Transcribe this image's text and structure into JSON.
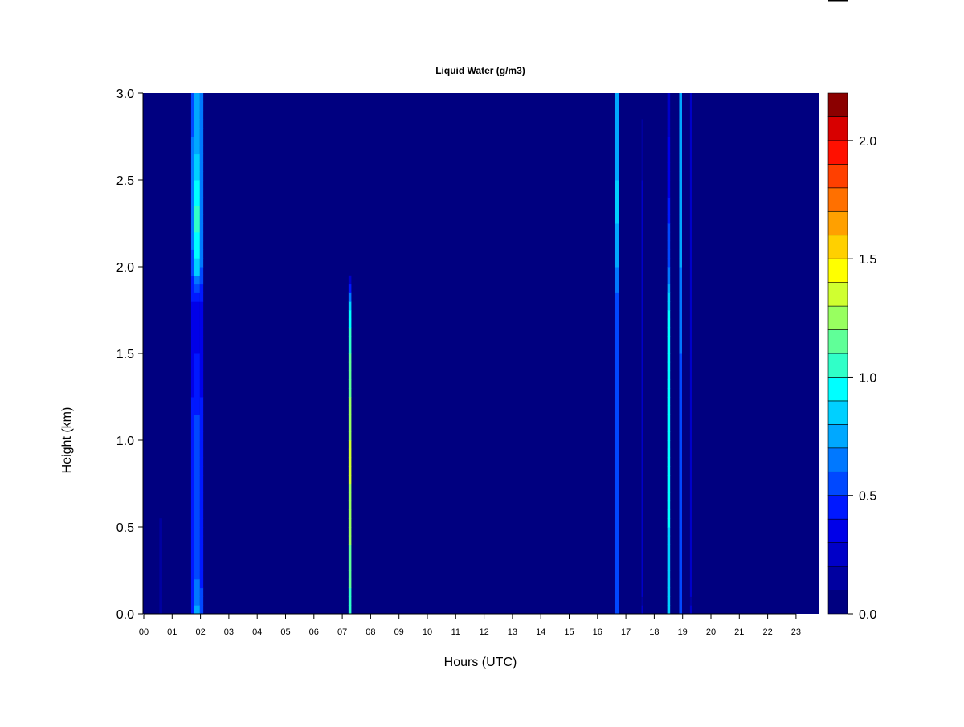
{
  "chart_data": {
    "type": "heatmap",
    "title": "Liquid Water (g/m3)",
    "xlabel": "Hours (UTC)",
    "ylabel": "Height (km)",
    "xlim": [
      0,
      23.8
    ],
    "ylim": [
      0,
      3.0
    ],
    "x_ticks": [
      "00",
      "01",
      "02",
      "03",
      "04",
      "05",
      "06",
      "07",
      "08",
      "09",
      "10",
      "11",
      "12",
      "13",
      "14",
      "15",
      "16",
      "17",
      "18",
      "19",
      "20",
      "21",
      "22",
      "23"
    ],
    "y_ticks": [
      "0.0",
      "0.5",
      "1.0",
      "1.5",
      "2.0",
      "2.5",
      "3.0"
    ],
    "background_value": 0.05,
    "profile_heights_km": [
      0,
      0.25,
      0.5,
      0.75,
      1.0,
      1.25,
      1.5,
      1.75,
      2.0,
      2.25,
      2.5,
      2.75,
      3.0
    ],
    "features": [
      {
        "hour_start": 0.55,
        "hour_end": 0.65,
        "values": [
          0.15,
          0.15,
          0.12,
          0,
          0,
          0,
          0,
          0,
          0,
          0,
          0,
          0,
          0
        ]
      },
      {
        "hour_start": 1.67,
        "hour_end": 1.78,
        "values": [
          0.5,
          0.45,
          0.4,
          0.4,
          0.45,
          0.4,
          0.35,
          0.35,
          0.55,
          0.65,
          0.65,
          0.6,
          0.6
        ]
      },
      {
        "hour_start": 1.78,
        "hour_end": 1.98,
        "values": [
          0.75,
          0.55,
          0.5,
          0.6,
          0.55,
          0.45,
          0.4,
          0.35,
          0.85,
          1.05,
          0.9,
          0.75,
          0.7
        ]
      },
      {
        "hour_start": 1.98,
        "hour_end": 2.1,
        "values": [
          0.55,
          0.45,
          0.4,
          0.45,
          0.45,
          0.4,
          0.35,
          0.35,
          0.6,
          0.7,
          0.7,
          0.65,
          0.6
        ]
      },
      {
        "hour_start": 7.22,
        "hour_end": 7.32,
        "values": [
          1.0,
          1.15,
          1.25,
          1.3,
          1.3,
          1.2,
          1.1,
          0.9,
          0,
          0,
          0,
          0,
          0
        ]
      },
      {
        "hour_start": 16.6,
        "hour_end": 16.76,
        "values": [
          0.55,
          0.5,
          0.5,
          0.5,
          0.55,
          0.55,
          0.5,
          0.55,
          0.7,
          0.8,
          0.8,
          0.75,
          0.7
        ]
      },
      {
        "hour_start": 17.55,
        "hour_end": 17.62,
        "values": [
          0.2,
          0.2,
          0.2,
          0.2,
          0.2,
          0.2,
          0.2,
          0.2,
          0.2,
          0.2,
          0.2,
          0.15,
          0
        ]
      },
      {
        "hour_start": 18.46,
        "hour_end": 18.56,
        "values": [
          0.85,
          0.85,
          0.9,
          0.9,
          0.9,
          0.9,
          0.9,
          0.9,
          0.6,
          0.5,
          0.35,
          0.3,
          0.3
        ]
      },
      {
        "hour_start": 18.88,
        "hour_end": 18.98,
        "values": [
          0.6,
          0.55,
          0.55,
          0.6,
          0.6,
          0.6,
          0.6,
          0.65,
          0.7,
          0.75,
          0.75,
          0.75,
          0.75
        ]
      },
      {
        "hour_start": 19.26,
        "hour_end": 19.34,
        "values": [
          0.2,
          0.2,
          0.2,
          0.2,
          0.2,
          0.2,
          0.2,
          0.2,
          0.2,
          0.2,
          0.2,
          0.2,
          0.2
        ]
      }
    ],
    "colorbar": {
      "levels": [
        0,
        0.1,
        0.2,
        0.3,
        0.4,
        0.5,
        0.6,
        0.7,
        0.8,
        0.9,
        1.0,
        1.1,
        1.2,
        1.3,
        1.4,
        1.5,
        1.6,
        1.7,
        1.8,
        1.9,
        2.0,
        2.1,
        2.2
      ],
      "tick_labels": [
        "0.0",
        "0.5",
        "1.0",
        "1.5",
        "2.0"
      ],
      "tick_values": [
        0,
        0.5,
        1.0,
        1.5,
        2.0
      ],
      "colors": [
        "#000080",
        "#0000A0",
        "#0000C8",
        "#0000E8",
        "#0018FF",
        "#0048FF",
        "#0078FF",
        "#00A8FF",
        "#00D0FF",
        "#00FFFF",
        "#30FFC8",
        "#60FF98",
        "#98FF60",
        "#D0FF30",
        "#FFFF00",
        "#FFD000",
        "#FFA000",
        "#FF7000",
        "#FF4000",
        "#FF1000",
        "#D80000",
        "#8B0000"
      ]
    }
  }
}
